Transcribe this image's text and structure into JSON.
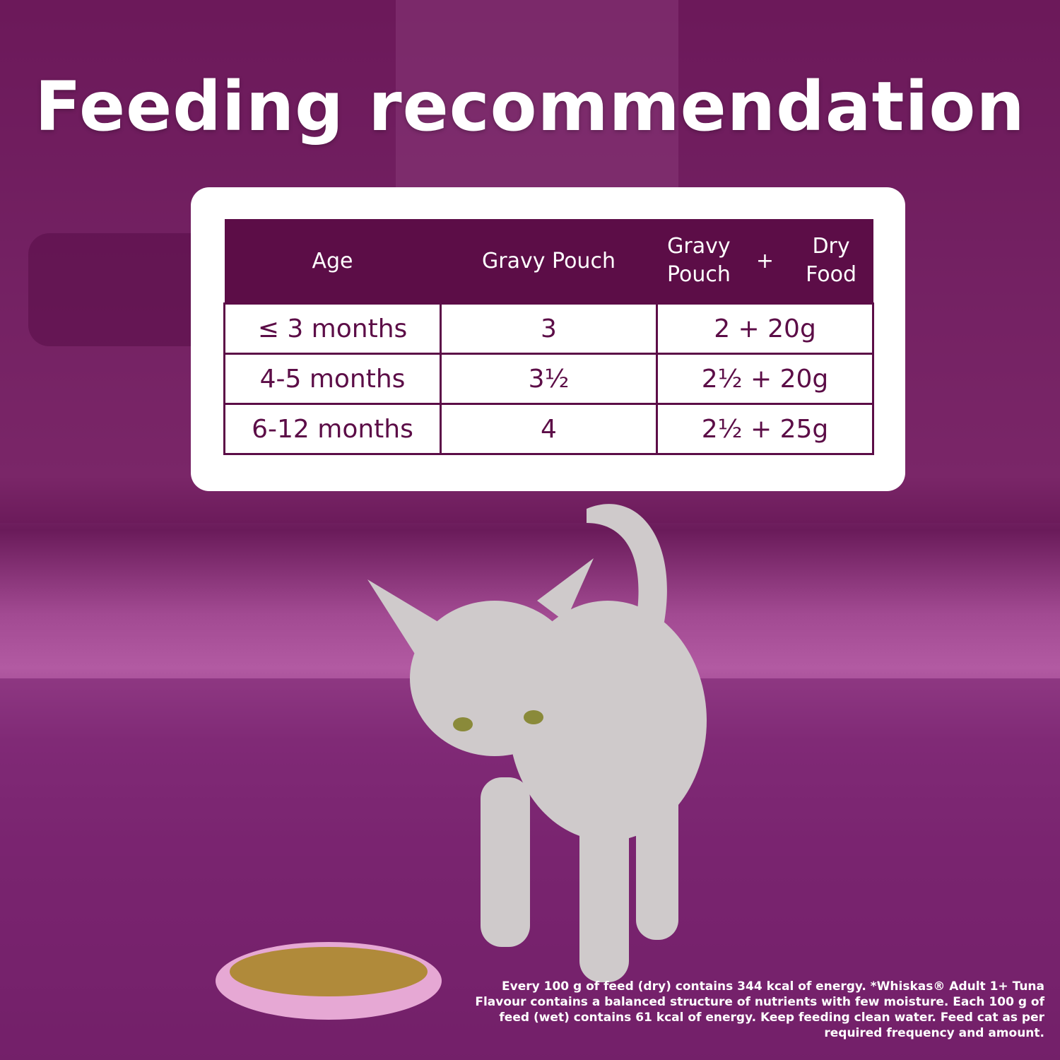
{
  "header": {
    "title": "Feeding recommendation"
  },
  "table": {
    "columns": [
      "Age",
      "Gravy Pouch",
      {
        "left": "Gravy Pouch",
        "plus": "+",
        "right": "Dry Food"
      }
    ],
    "rows": [
      [
        "≤ 3 months",
        "3",
        "2 + 20g"
      ],
      [
        "4-5 months",
        "3½",
        "2½ + 20g"
      ],
      [
        "6-12 months",
        "4",
        "2½ + 25g"
      ]
    ]
  },
  "footnote": "Every 100 g of feed (dry) contains 344 kcal of energy. *Whiskas® Adult 1+ Tuna Flavour contains a balanced structure of nutrients with few moisture. Each 100 g of feed (wet) contains 61 kcal of energy. Keep feeding clean water. Feed cat as per required frequency and amount."
}
